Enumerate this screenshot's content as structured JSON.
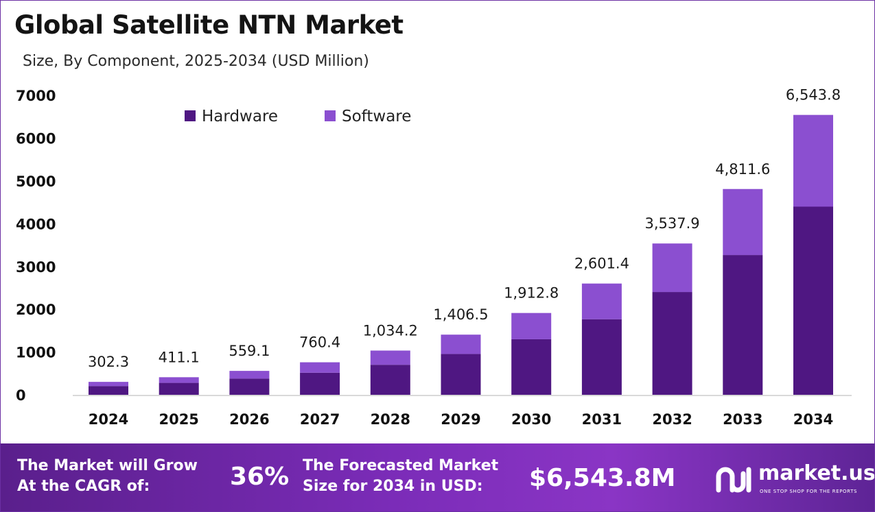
{
  "header": {
    "title": "Global Satellite NTN Market",
    "subtitle": "Size, By Component, 2025-2034 (USD Million)"
  },
  "chart_data": {
    "type": "bar",
    "stacked": true,
    "categories": [
      "2024",
      "2025",
      "2026",
      "2027",
      "2028",
      "2029",
      "2030",
      "2031",
      "2032",
      "2033",
      "2034"
    ],
    "series": [
      {
        "name": "Hardware",
        "color": "#4f1782",
        "values": [
          205,
          279,
          380,
          516,
          702,
          955,
          1299,
          1767,
          2403,
          3268,
          4399
        ]
      },
      {
        "name": "Software",
        "color": "#8b4fd0",
        "values": [
          97.3,
          132.1,
          179.1,
          244.4,
          332.2,
          451.5,
          613.8,
          834.4,
          1134.9,
          1543.6,
          2144.8
        ]
      }
    ],
    "totals_labels": [
      "302.3",
      "411.1",
      "559.1",
      "760.4",
      "1,034.2",
      "1,406.5",
      "1,912.8",
      "2,601.4",
      "3,537.9",
      "4,811.6",
      "6,543.8"
    ],
    "totals": [
      302.3,
      411.1,
      559.1,
      760.4,
      1034.2,
      1406.5,
      1912.8,
      2601.4,
      3537.9,
      4811.6,
      6543.8
    ],
    "y_ticks": [
      "0",
      "1000",
      "2000",
      "3000",
      "4000",
      "5000",
      "6000",
      "7000"
    ],
    "ylim": [
      0,
      7000
    ],
    "legend_position": "top-left",
    "grid": false
  },
  "footer": {
    "cagr_label_line1": "The Market will Grow",
    "cagr_label_line2": "At the CAGR of:",
    "cagr_value": "36%",
    "forecast_label_line1": "The Forecasted Market",
    "forecast_label_line2": "Size for 2034 in USD:",
    "forecast_value": "$6,543.8M",
    "brand_name": "market.us",
    "brand_tagline": "ONE STOP SHOP FOR THE REPORTS"
  }
}
